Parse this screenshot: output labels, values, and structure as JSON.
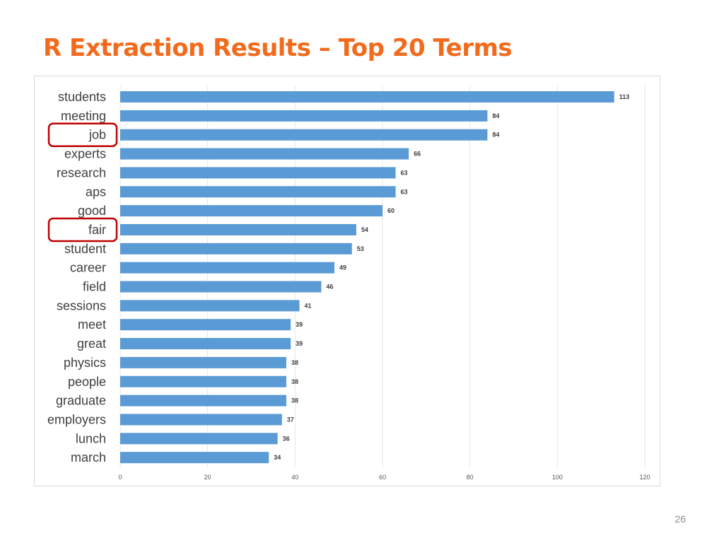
{
  "slide": {
    "title": "R Extraction Results – Top 20 Terms",
    "page_number": "26"
  },
  "colors": {
    "title": "#f26b1d",
    "bar": "#5b9bd5",
    "highlight_box": "#c00000",
    "gridline": "#e6e6e6"
  },
  "chart_data": {
    "type": "bar",
    "orientation": "horizontal",
    "categories": [
      "students",
      "meeting",
      "job",
      "experts",
      "research",
      "aps",
      "good",
      "fair",
      "student",
      "career",
      "field",
      "sessions",
      "meet",
      "great",
      "physics",
      "people",
      "graduate",
      "employers",
      "lunch",
      "march"
    ],
    "values": [
      113,
      84,
      84,
      66,
      63,
      63,
      60,
      54,
      53,
      49,
      46,
      41,
      39,
      39,
      38,
      38,
      38,
      37,
      36,
      34
    ],
    "xlim": [
      0,
      120
    ],
    "xticks": [
      0,
      20,
      40,
      60,
      80,
      100,
      120
    ],
    "grid": true,
    "data_labels": true,
    "highlighted_categories": [
      "job",
      "fair"
    ]
  }
}
